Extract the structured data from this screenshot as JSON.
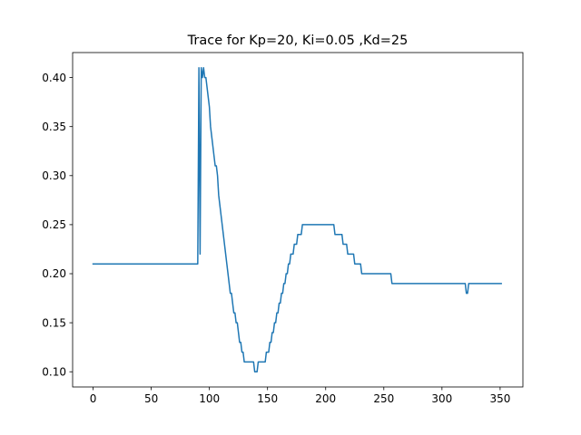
{
  "chart_data": {
    "type": "line",
    "title": "Trace for Kp=20, Ki=0.05 ,Kd=25",
    "xlabel": "",
    "ylabel": "",
    "xlim": [
      -17.6,
      369.6
    ],
    "ylim": [
      0.0845,
      0.4255
    ],
    "x_ticks": [
      0,
      50,
      100,
      150,
      200,
      250,
      300,
      350
    ],
    "x_tick_labels": [
      "0",
      "50",
      "100",
      "150",
      "200",
      "250",
      "300",
      "350"
    ],
    "y_ticks": [
      0.1,
      0.15,
      0.2,
      0.25,
      0.3,
      0.35,
      0.4
    ],
    "y_tick_labels": [
      "0.10",
      "0.15",
      "0.20",
      "0.25",
      "0.30",
      "0.35",
      "0.40"
    ],
    "grid": false,
    "series": [
      {
        "color": "#1f77b4",
        "x": [
          0,
          90,
          91,
          92,
          93,
          94,
          95,
          96,
          97,
          98,
          99,
          100,
          101,
          102,
          103,
          104,
          105,
          106,
          107,
          108,
          109,
          110,
          111,
          112,
          113,
          114,
          115,
          116,
          117,
          118,
          119,
          120,
          121,
          122,
          123,
          124,
          125,
          126,
          127,
          128,
          129,
          130,
          131,
          132,
          133,
          134,
          135,
          138,
          139,
          141,
          142,
          143,
          148,
          149,
          151,
          152,
          153,
          154,
          155,
          156,
          157,
          158,
          159,
          160,
          161,
          162,
          163,
          164,
          165,
          166,
          167,
          168,
          169,
          170,
          171,
          172,
          173,
          174,
          175,
          176,
          177,
          178,
          179,
          180,
          181,
          182,
          183,
          184,
          185,
          186,
          187,
          188,
          189,
          192,
          193,
          207,
          208,
          214,
          215,
          218,
          219,
          224,
          225,
          230,
          231,
          239,
          240,
          256,
          257,
          319,
          320,
          321,
          322,
          323,
          351
        ],
        "y": [
          0.21,
          0.21,
          0.41,
          0.22,
          0.41,
          0.4,
          0.41,
          0.4,
          0.4,
          0.39,
          0.38,
          0.37,
          0.35,
          0.34,
          0.33,
          0.32,
          0.31,
          0.31,
          0.3,
          0.28,
          0.27,
          0.26,
          0.25,
          0.24,
          0.23,
          0.22,
          0.21,
          0.2,
          0.19,
          0.18,
          0.18,
          0.17,
          0.16,
          0.16,
          0.15,
          0.15,
          0.14,
          0.13,
          0.13,
          0.12,
          0.12,
          0.11,
          0.11,
          0.11,
          0.11,
          0.11,
          0.11,
          0.11,
          0.1,
          0.1,
          0.11,
          0.11,
          0.11,
          0.12,
          0.12,
          0.13,
          0.13,
          0.14,
          0.14,
          0.15,
          0.15,
          0.16,
          0.16,
          0.17,
          0.17,
          0.18,
          0.18,
          0.19,
          0.19,
          0.2,
          0.2,
          0.21,
          0.21,
          0.22,
          0.22,
          0.22,
          0.23,
          0.23,
          0.23,
          0.24,
          0.24,
          0.24,
          0.24,
          0.25,
          0.25,
          0.25,
          0.25,
          0.25,
          0.25,
          0.25,
          0.25,
          0.25,
          0.25,
          0.25,
          0.25,
          0.25,
          0.24,
          0.24,
          0.23,
          0.23,
          0.22,
          0.22,
          0.21,
          0.21,
          0.2,
          0.2,
          0.2,
          0.2,
          0.19,
          0.19,
          0.19,
          0.18,
          0.18,
          0.19,
          0.19
        ]
      }
    ]
  }
}
